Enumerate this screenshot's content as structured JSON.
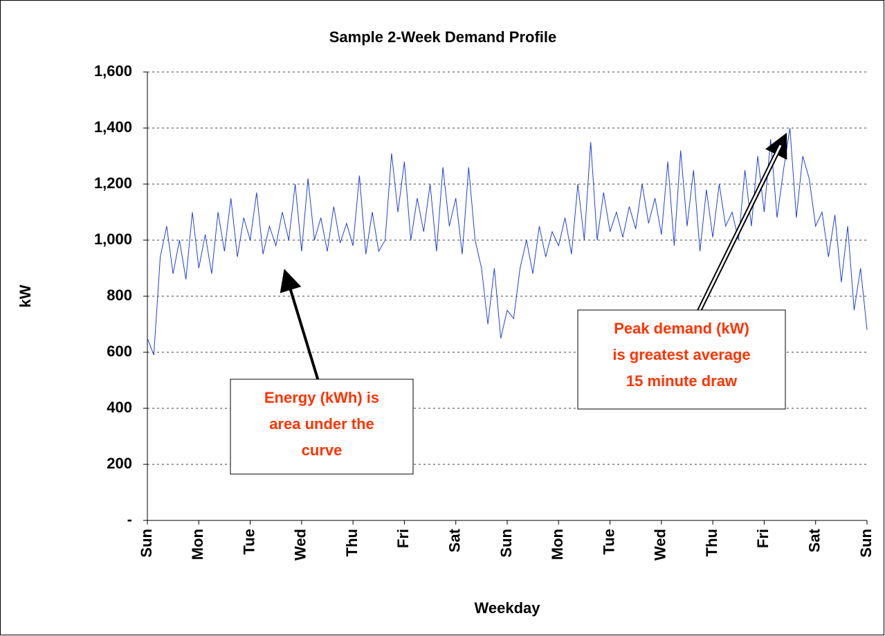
{
  "chart_data": {
    "type": "line",
    "title": "Sample 2-Week Demand Profile",
    "x_label": "Weekday",
    "y_label": "kW",
    "xlim": [
      0,
      14
    ],
    "xticks": [
      {
        "value": 0,
        "label": "Sun"
      },
      {
        "value": 1,
        "label": "Mon"
      },
      {
        "value": 2,
        "label": "Tue"
      },
      {
        "value": 3,
        "label": "Wed"
      },
      {
        "value": 4,
        "label": "Thu"
      },
      {
        "value": 5,
        "label": "Fri"
      },
      {
        "value": 6,
        "label": "Sat"
      },
      {
        "value": 7,
        "label": "Sun"
      },
      {
        "value": 8,
        "label": "Mon"
      },
      {
        "value": 9,
        "label": "Tue"
      },
      {
        "value": 10,
        "label": "Wed"
      },
      {
        "value": 11,
        "label": "Thu"
      },
      {
        "value": 12,
        "label": "Fri"
      },
      {
        "value": 13,
        "label": "Sat"
      },
      {
        "value": 14,
        "label": "Sun"
      }
    ],
    "ylim": [
      0,
      1600
    ],
    "yticks": [
      {
        "value": 0,
        "label": "-"
      },
      {
        "value": 200,
        "label": "200"
      },
      {
        "value": 400,
        "label": "400"
      },
      {
        "value": 600,
        "label": "600"
      },
      {
        "value": 800,
        "label": "800"
      },
      {
        "value": 1000,
        "label": "1,000"
      },
      {
        "value": 1200,
        "label": "1,200"
      },
      {
        "value": 1400,
        "label": "1,400"
      },
      {
        "value": 1600,
        "label": "1,600"
      }
    ],
    "grid": true,
    "color": "#1f3fd8",
    "x": [
      0,
      0.125,
      0.25,
      0.375,
      0.5,
      0.625,
      0.75,
      0.875,
      1,
      1.125,
      1.25,
      1.375,
      1.5,
      1.625,
      1.75,
      1.875,
      2,
      2.125,
      2.25,
      2.375,
      2.5,
      2.625,
      2.75,
      2.875,
      3,
      3.125,
      3.25,
      3.375,
      3.5,
      3.625,
      3.75,
      3.875,
      4,
      4.125,
      4.25,
      4.375,
      4.5,
      4.625,
      4.75,
      4.875,
      5,
      5.125,
      5.25,
      5.375,
      5.5,
      5.625,
      5.75,
      5.875,
      6,
      6.125,
      6.25,
      6.375,
      6.5,
      6.625,
      6.75,
      6.875,
      7,
      7.125,
      7.25,
      7.375,
      7.5,
      7.625,
      7.75,
      7.875,
      8,
      8.125,
      8.25,
      8.375,
      8.5,
      8.625,
      8.75,
      8.875,
      9,
      9.125,
      9.25,
      9.375,
      9.5,
      9.625,
      9.75,
      9.875,
      10,
      10.125,
      10.25,
      10.375,
      10.5,
      10.625,
      10.75,
      10.875,
      11,
      11.125,
      11.25,
      11.375,
      11.5,
      11.625,
      11.75,
      11.875,
      12,
      12.125,
      12.25,
      12.375,
      12.5,
      12.625,
      12.75,
      12.875,
      13,
      13.125,
      13.25,
      13.375,
      13.5,
      13.625,
      13.75,
      13.875,
      14
    ],
    "values": [
      650,
      590,
      940,
      1050,
      880,
      1000,
      860,
      1100,
      900,
      1020,
      880,
      1100,
      960,
      1150,
      940,
      1080,
      1000,
      1170,
      950,
      1050,
      980,
      1100,
      1000,
      1200,
      960,
      1220,
      1000,
      1080,
      960,
      1120,
      990,
      1060,
      980,
      1230,
      950,
      1100,
      960,
      1000,
      1310,
      1100,
      1280,
      1000,
      1150,
      1030,
      1200,
      960,
      1260,
      1050,
      1150,
      950,
      1260,
      1000,
      900,
      700,
      900,
      650,
      750,
      720,
      900,
      1000,
      880,
      1050,
      940,
      1030,
      980,
      1080,
      950,
      1200,
      1000,
      1350,
      1000,
      1170,
      1030,
      1100,
      1010,
      1120,
      1040,
      1200,
      1060,
      1150,
      1020,
      1280,
      980,
      1320,
      1050,
      1250,
      960,
      1180,
      1010,
      1200,
      1050,
      1100,
      1000,
      1250,
      1050,
      1300,
      1100,
      1360,
      1080,
      1250,
      1400,
      1080,
      1300,
      1220,
      1050,
      1100,
      940,
      1090,
      850,
      1050,
      750,
      900,
      680
    ],
    "annotations": [
      {
        "lines": [
          "Energy (kWh) is",
          "area under the",
          "curve"
        ]
      },
      {
        "lines": [
          "Peak demand (kW)",
          "is greatest average",
          "15 minute draw"
        ]
      }
    ]
  }
}
